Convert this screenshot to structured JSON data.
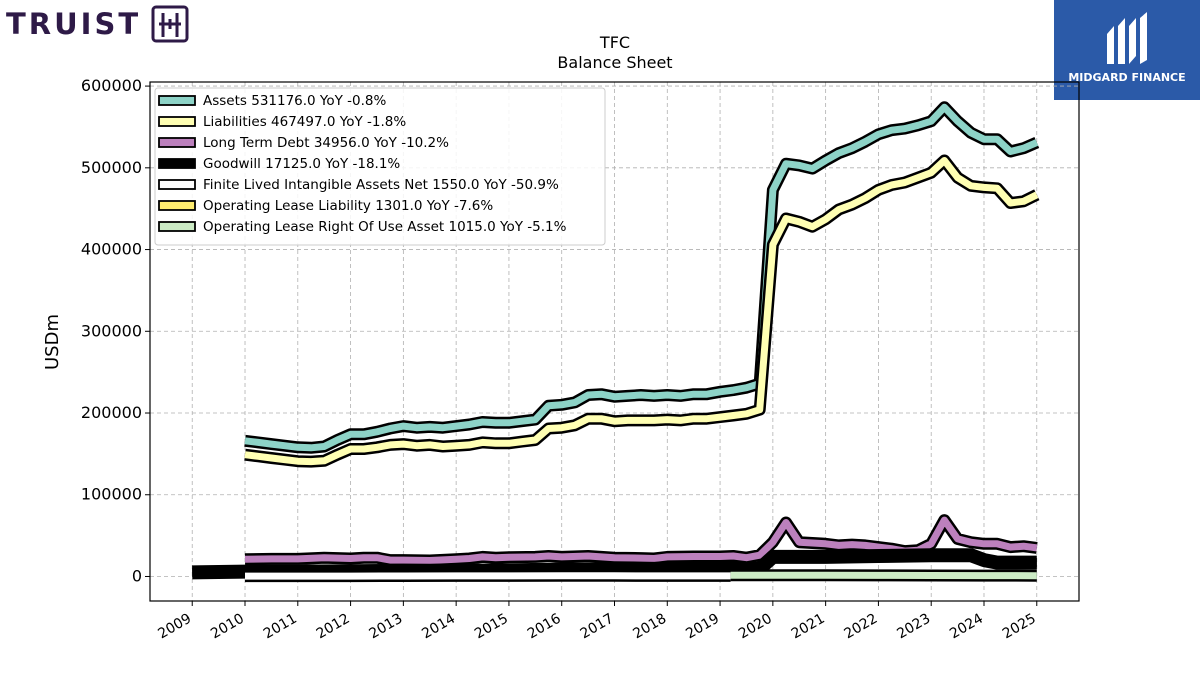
{
  "brand": {
    "left_logo_text": "TRUIST",
    "right_logo_text": "MIDGARD FINANCE"
  },
  "chart_data": {
    "type": "line",
    "title": "TFC",
    "subtitle": "Balance  Sheet",
    "ylabel": "USDm",
    "xlabel": "",
    "ylim": [
      -30000,
      605000
    ],
    "xlim": [
      2008.2,
      2025.8
    ],
    "y_ticks": [
      0,
      100000,
      200000,
      300000,
      400000,
      500000,
      600000
    ],
    "x_ticks": [
      "2009",
      "2010",
      "2011",
      "2012",
      "2013",
      "2014",
      "2015",
      "2016",
      "2017",
      "2018",
      "2019",
      "2020",
      "2021",
      "2022",
      "2023",
      "2024",
      "2025"
    ],
    "grid": true,
    "legend_position": "top-left",
    "series": [
      {
        "name": "Assets",
        "legend": "Assets  531176.0 YoY -0.8%",
        "color": "#8dd3c7",
        "width": 9,
        "points": [
          [
            2010.0,
            166000
          ],
          [
            2010.25,
            164000
          ],
          [
            2010.5,
            162000
          ],
          [
            2010.75,
            160000
          ],
          [
            2011.0,
            158000
          ],
          [
            2011.25,
            157500
          ],
          [
            2011.5,
            159000
          ],
          [
            2011.75,
            167000
          ],
          [
            2012.0,
            174000
          ],
          [
            2012.25,
            174000
          ],
          [
            2012.5,
            177000
          ],
          [
            2012.75,
            181000
          ],
          [
            2013.0,
            184000
          ],
          [
            2013.25,
            182000
          ],
          [
            2013.5,
            183000
          ],
          [
            2013.75,
            182000
          ],
          [
            2014.0,
            184000
          ],
          [
            2014.25,
            186000
          ],
          [
            2014.5,
            189000
          ],
          [
            2014.75,
            188000
          ],
          [
            2015.0,
            188000
          ],
          [
            2015.25,
            190000
          ],
          [
            2015.5,
            192000
          ],
          [
            2015.75,
            209000
          ],
          [
            2016.0,
            210000
          ],
          [
            2016.25,
            213000
          ],
          [
            2016.5,
            222000
          ],
          [
            2016.75,
            223000
          ],
          [
            2017.0,
            220000
          ],
          [
            2017.25,
            221000
          ],
          [
            2017.5,
            222000
          ],
          [
            2017.75,
            221000
          ],
          [
            2018.0,
            222000
          ],
          [
            2018.25,
            221000
          ],
          [
            2018.5,
            223000
          ],
          [
            2018.75,
            223000
          ],
          [
            2019.0,
            226000
          ],
          [
            2019.25,
            228000
          ],
          [
            2019.5,
            231000
          ],
          [
            2019.75,
            236000
          ],
          [
            2020.0,
            473000
          ],
          [
            2020.25,
            505000
          ],
          [
            2020.5,
            503000
          ],
          [
            2020.75,
            499000
          ],
          [
            2021.0,
            509000
          ],
          [
            2021.25,
            518000
          ],
          [
            2021.5,
            524000
          ],
          [
            2021.75,
            532000
          ],
          [
            2022.0,
            541000
          ],
          [
            2022.25,
            546000
          ],
          [
            2022.5,
            548000
          ],
          [
            2022.75,
            552000
          ],
          [
            2023.0,
            557000
          ],
          [
            2023.25,
            574000
          ],
          [
            2023.5,
            557000
          ],
          [
            2023.75,
            543000
          ],
          [
            2024.0,
            535000
          ],
          [
            2024.25,
            535000
          ],
          [
            2024.5,
            520000
          ],
          [
            2024.75,
            524000
          ],
          [
            2025.0,
            531000
          ]
        ]
      },
      {
        "name": "Liabilities",
        "legend": "Liabilities  467497.0 YoY -1.8%",
        "color": "#ffffb3",
        "width": 9,
        "points": [
          [
            2010.0,
            149000
          ],
          [
            2010.25,
            147000
          ],
          [
            2010.5,
            145000
          ],
          [
            2010.75,
            143000
          ],
          [
            2011.0,
            141000
          ],
          [
            2011.25,
            140500
          ],
          [
            2011.5,
            141500
          ],
          [
            2011.75,
            149000
          ],
          [
            2012.0,
            156000
          ],
          [
            2012.25,
            156000
          ],
          [
            2012.5,
            158000
          ],
          [
            2012.75,
            161000
          ],
          [
            2013.0,
            162000
          ],
          [
            2013.25,
            160000
          ],
          [
            2013.5,
            161000
          ],
          [
            2013.75,
            159000
          ],
          [
            2014.0,
            160000
          ],
          [
            2014.25,
            161000
          ],
          [
            2014.5,
            164000
          ],
          [
            2014.75,
            163000
          ],
          [
            2015.0,
            163000
          ],
          [
            2015.25,
            165000
          ],
          [
            2015.5,
            167000
          ],
          [
            2015.75,
            181000
          ],
          [
            2016.0,
            182000
          ],
          [
            2016.25,
            185000
          ],
          [
            2016.5,
            193000
          ],
          [
            2016.75,
            193000
          ],
          [
            2017.0,
            190000
          ],
          [
            2017.25,
            191000
          ],
          [
            2017.5,
            191000
          ],
          [
            2017.75,
            191000
          ],
          [
            2018.0,
            192000
          ],
          [
            2018.25,
            191000
          ],
          [
            2018.5,
            193000
          ],
          [
            2018.75,
            193000
          ],
          [
            2019.0,
            195000
          ],
          [
            2019.25,
            197000
          ],
          [
            2019.5,
            199000
          ],
          [
            2019.75,
            204000
          ],
          [
            2020.0,
            406000
          ],
          [
            2020.25,
            438000
          ],
          [
            2020.5,
            434000
          ],
          [
            2020.75,
            428000
          ],
          [
            2021.0,
            437000
          ],
          [
            2021.25,
            449000
          ],
          [
            2021.5,
            455000
          ],
          [
            2021.75,
            463000
          ],
          [
            2022.0,
            473000
          ],
          [
            2022.25,
            479000
          ],
          [
            2022.5,
            482000
          ],
          [
            2022.75,
            488000
          ],
          [
            2023.0,
            494000
          ],
          [
            2023.25,
            509000
          ],
          [
            2023.5,
            488000
          ],
          [
            2023.75,
            478000
          ],
          [
            2024.0,
            476000
          ],
          [
            2024.25,
            475000
          ],
          [
            2024.5,
            457000
          ],
          [
            2024.75,
            459000
          ],
          [
            2025.0,
            467000
          ]
        ]
      },
      {
        "name": "Long Term Debt",
        "legend": "Long Term Debt  34956.0 YoY -10.2%",
        "color": "#bc80bd",
        "width": 9,
        "points": [
          [
            2010.0,
            21000
          ],
          [
            2010.5,
            21500
          ],
          [
            2011.0,
            21500
          ],
          [
            2011.5,
            23000
          ],
          [
            2012.0,
            22000
          ],
          [
            2012.25,
            23000
          ],
          [
            2012.5,
            23000
          ],
          [
            2012.75,
            20000
          ],
          [
            2013.0,
            20000
          ],
          [
            2013.5,
            19500
          ],
          [
            2014.0,
            21000
          ],
          [
            2014.25,
            22000
          ],
          [
            2014.5,
            24000
          ],
          [
            2014.75,
            23000
          ],
          [
            2015.0,
            23500
          ],
          [
            2015.5,
            24000
          ],
          [
            2015.75,
            25000
          ],
          [
            2016.0,
            24000
          ],
          [
            2016.5,
            25000
          ],
          [
            2016.75,
            24000
          ],
          [
            2017.0,
            23000
          ],
          [
            2017.5,
            22500
          ],
          [
            2017.75,
            22000
          ],
          [
            2018.0,
            24000
          ],
          [
            2018.5,
            24500
          ],
          [
            2019.0,
            24500
          ],
          [
            2019.25,
            25000
          ],
          [
            2019.5,
            23000
          ],
          [
            2019.75,
            26000
          ],
          [
            2020.0,
            42000
          ],
          [
            2020.25,
            66000
          ],
          [
            2020.5,
            42000
          ],
          [
            2020.75,
            41000
          ],
          [
            2021.0,
            40000
          ],
          [
            2021.25,
            38000
          ],
          [
            2021.5,
            39000
          ],
          [
            2021.75,
            38000
          ],
          [
            2022.0,
            36000
          ],
          [
            2022.25,
            34000
          ],
          [
            2022.5,
            31000
          ],
          [
            2022.75,
            32000
          ],
          [
            2023.0,
            40000
          ],
          [
            2023.25,
            69000
          ],
          [
            2023.5,
            46000
          ],
          [
            2023.75,
            42000
          ],
          [
            2024.0,
            40000
          ],
          [
            2024.25,
            40000
          ],
          [
            2024.5,
            36000
          ],
          [
            2024.75,
            37000
          ],
          [
            2025.0,
            35000
          ]
        ]
      },
      {
        "name": "Goodwill",
        "legend": "Goodwill  17125.0 YoY -18.1%",
        "color": "#000000",
        "width": 11,
        "points": [
          [
            2009.0,
            5000
          ],
          [
            2010.0,
            6000
          ],
          [
            2011.0,
            6000
          ],
          [
            2012.0,
            6500
          ],
          [
            2013.0,
            7000
          ],
          [
            2014.0,
            7000
          ],
          [
            2015.0,
            7500
          ],
          [
            2016.0,
            8500
          ],
          [
            2017.0,
            9000
          ],
          [
            2018.0,
            9500
          ],
          [
            2019.0,
            9500
          ],
          [
            2019.75,
            9500
          ],
          [
            2020.0,
            24000
          ],
          [
            2021.0,
            24000
          ],
          [
            2022.0,
            25000
          ],
          [
            2023.0,
            26000
          ],
          [
            2023.75,
            26000
          ],
          [
            2024.0,
            20000
          ],
          [
            2024.25,
            17000
          ],
          [
            2025.0,
            17000
          ]
        ]
      },
      {
        "name": "Finite Lived Intangible Assets Net",
        "legend": "Finite Lived Intangible Assets Net  1550.0 YoY -50.9%",
        "color": "#ffffff",
        "width": 9,
        "points": [
          [
            2010.0,
            500
          ],
          [
            2011.0,
            500
          ],
          [
            2012.0,
            500
          ],
          [
            2013.0,
            600
          ],
          [
            2014.0,
            700
          ],
          [
            2015.0,
            700
          ],
          [
            2016.0,
            800
          ],
          [
            2017.0,
            800
          ],
          [
            2018.0,
            700
          ],
          [
            2019.0,
            700
          ],
          [
            2019.2,
            700
          ]
        ]
      },
      {
        "name": "Operating Lease Liability",
        "legend": "Operating Lease Liability  1301.0 YoY -7.6%",
        "color": "#ffed6f",
        "width": 9,
        "points": []
      },
      {
        "name": "Operating Lease Right Of Use Asset",
        "legend": "Operating Lease Right Of Use Asset  1015.0 YoY -5.1%",
        "color": "#ccebc5",
        "width": 9,
        "points": [
          [
            2019.2,
            1500
          ],
          [
            2020.0,
            1600
          ],
          [
            2021.0,
            1400
          ],
          [
            2022.0,
            1300
          ],
          [
            2023.0,
            1200
          ],
          [
            2024.0,
            1100
          ],
          [
            2025.0,
            1015
          ]
        ]
      }
    ]
  }
}
